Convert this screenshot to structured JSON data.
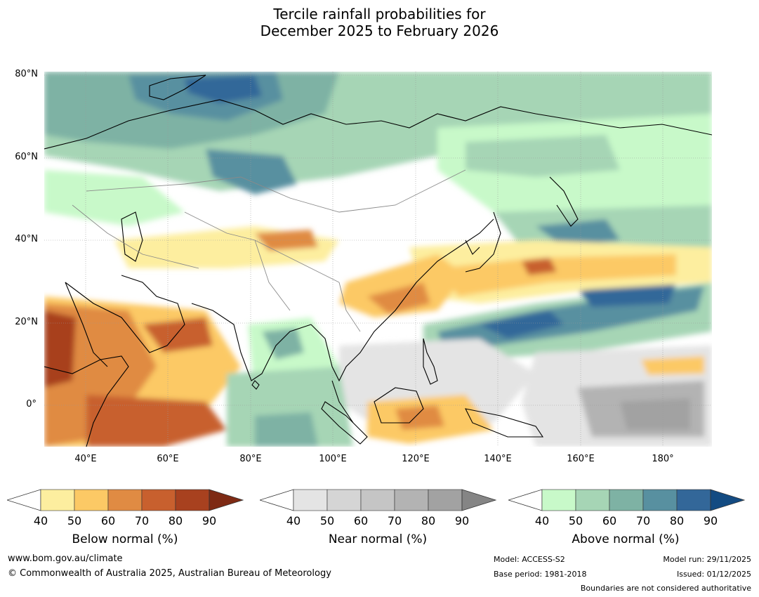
{
  "title": {
    "line1": "Tercile rainfall probabilities for",
    "line2": "December 2025 to February 2026"
  },
  "map": {
    "lat_labels": [
      "80°N",
      "60°N",
      "40°N",
      "20°N",
      "0°"
    ],
    "lon_labels": [
      "40°E",
      "60°E",
      "80°E",
      "100°E",
      "120°E",
      "140°E",
      "160°E",
      "180°"
    ],
    "region": "Asia / Indian Ocean / West Pacific"
  },
  "colorbars": {
    "below": {
      "label": "Below normal (%)",
      "ticks": [
        "40",
        "50",
        "60",
        "70",
        "80",
        "90"
      ],
      "colors": [
        "#fdee9f",
        "#fcc965",
        "#e08b43",
        "#c8602e",
        "#a8411f",
        "#7e2a14"
      ]
    },
    "near": {
      "label": "Near normal (%)",
      "ticks": [
        "40",
        "50",
        "60",
        "70",
        "80",
        "90"
      ],
      "colors": [
        "#e4e4e4",
        "#d5d5d5",
        "#c5c5c5",
        "#b3b3b3",
        "#a2a2a2",
        "#858585"
      ]
    },
    "above": {
      "label": "Above normal (%)",
      "ticks": [
        "40",
        "50",
        "60",
        "70",
        "80",
        "90"
      ],
      "colors": [
        "#c8f9c9",
        "#a6d5b5",
        "#7eb2a4",
        "#5890a0",
        "#336799",
        "#134b82"
      ]
    }
  },
  "footer": {
    "website": "www.bom.gov.au/climate",
    "copyright": "© Commonwealth of Australia 2025, Australian Bureau of Meteorology",
    "model": "Model: ACCESS-S2",
    "base_period": "Base period: 1981-2018",
    "model_run": "Model run: 29/11/2025",
    "issued": "Issued: 01/12/2025",
    "disclaimer": "Boundaries are not considered authoritative"
  }
}
